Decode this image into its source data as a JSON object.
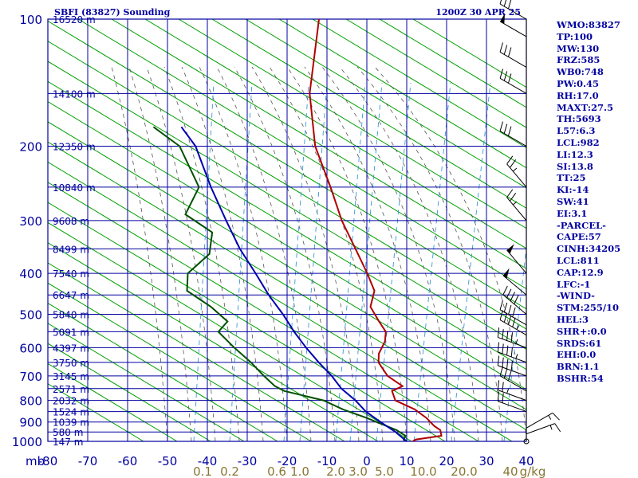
{
  "header": {
    "station": "SBFI (83827) Sounding",
    "time": "1200Z 30 APR 25"
  },
  "indices": [
    "WMO:83827",
    "TP:100",
    "MW:130",
    "FRZ:585",
    "WB0:748",
    "PW:0.45",
    "RH:17.0",
    "MAXT:27.5",
    "TH:5693",
    "L57:6.3",
    "LCL:982",
    "LI:12.3",
    "SI:13.8",
    "TT:25",
    "KI:-14",
    "SW:41",
    "EI:3.1",
    "-PARCEL-",
    "CAPE:57",
    "CINH:34205",
    "LCL:811",
    "CAP:12.9",
    "LFC:-1",
    "-WIND-",
    "STM:255/10",
    "HEL:3",
    "SHR+:0.0",
    "SRDS:61",
    "EHI:0.0",
    "BRN:1.1",
    "BSHR:54"
  ],
  "colors": {
    "grid": "#0000a0",
    "dry_adiabat": "#00a000",
    "moist_adiabat": "#555555",
    "mixing_ratio": "#3399dd",
    "temperature": "#b00000",
    "dewpoint": "#005000",
    "parcel": "#0000b0",
    "label": "#0000a0",
    "mixing_label": "#887733"
  },
  "chart_data": {
    "type": "line",
    "diagram": "skew-T log-P",
    "xlabel": "mb",
    "x_ticks": [
      "-80",
      "-70",
      "-60",
      "-50",
      "-40",
      "-30",
      "-20",
      "-10",
      "0",
      "10",
      "20",
      "30",
      "40"
    ],
    "y_ticks": [
      "100",
      "200",
      "300",
      "400",
      "500",
      "600",
      "700",
      "800",
      "900",
      "1000"
    ],
    "heights": [
      {
        "p": 100,
        "label": "16520 m"
      },
      {
        "p": 150,
        "label": "14100 m"
      },
      {
        "p": 200,
        "label": "12350 m"
      },
      {
        "p": 250,
        "label": "10840 m"
      },
      {
        "p": 300,
        "label": "9608 m"
      },
      {
        "p": 350,
        "label": "8499 m"
      },
      {
        "p": 400,
        "label": "7540 m"
      },
      {
        "p": 450,
        "label": "6647 m"
      },
      {
        "p": 500,
        "label": "5840 m"
      },
      {
        "p": 550,
        "label": "5091 m"
      },
      {
        "p": 600,
        "label": "4397 m"
      },
      {
        "p": 650,
        "label": "3750 m"
      },
      {
        "p": 700,
        "label": "3145 m"
      },
      {
        "p": 750,
        "label": "2571 m"
      },
      {
        "p": 800,
        "label": "2032 m"
      },
      {
        "p": 850,
        "label": "1524 m"
      },
      {
        "p": 900,
        "label": "1039 m"
      },
      {
        "p": 950,
        "label": "580 m"
      },
      {
        "p": 1000,
        "label": "147 m"
      }
    ],
    "mixing_ratio_labels": [
      "0.1",
      "0.2",
      "0.6",
      "1.0",
      "2.0",
      "3.0",
      "5.0",
      "10.0",
      "20.0",
      "40",
      "g/kg"
    ],
    "series": [
      {
        "name": "temperature",
        "points": [
          [
            1010,
            11
          ],
          [
            990,
            12
          ],
          [
            970,
            18
          ],
          [
            940,
            17
          ],
          [
            920,
            15
          ],
          [
            880,
            12
          ],
          [
            840,
            8
          ],
          [
            800,
            2
          ],
          [
            760,
            0
          ],
          [
            740,
            2
          ],
          [
            700,
            -3
          ],
          [
            650,
            -7
          ],
          [
            620,
            -8
          ],
          [
            580,
            -8
          ],
          [
            550,
            -9
          ],
          [
            520,
            -12
          ],
          [
            480,
            -16
          ],
          [
            440,
            -17
          ],
          [
            400,
            -21
          ],
          [
            350,
            -27
          ],
          [
            300,
            -34
          ],
          [
            250,
            -41
          ],
          [
            200,
            -50
          ],
          [
            150,
            -58
          ],
          [
            100,
            -65
          ]
        ]
      },
      {
        "name": "dewpoint",
        "points": [
          [
            1010,
            10
          ],
          [
            990,
            9
          ],
          [
            970,
            9
          ],
          [
            940,
            6
          ],
          [
            900,
            0
          ],
          [
            880,
            -3
          ],
          [
            840,
            -10
          ],
          [
            800,
            -16
          ],
          [
            760,
            -27
          ],
          [
            740,
            -30
          ],
          [
            700,
            -34
          ],
          [
            650,
            -39
          ],
          [
            600,
            -45
          ],
          [
            550,
            -51
          ],
          [
            520,
            -50
          ],
          [
            480,
            -56
          ],
          [
            440,
            -64
          ],
          [
            400,
            -66
          ],
          [
            360,
            -63
          ],
          [
            320,
            -65
          ],
          [
            290,
            -74
          ],
          [
            250,
            -74
          ],
          [
            200,
            -84
          ],
          [
            180,
            -93
          ]
        ]
      },
      {
        "name": "parcel",
        "points": [
          [
            1020,
            14
          ],
          [
            1000,
            10
          ],
          [
            950,
            6
          ],
          [
            900,
            1
          ],
          [
            850,
            -4
          ],
          [
            800,
            -8
          ],
          [
            750,
            -13
          ],
          [
            700,
            -17
          ],
          [
            650,
            -22
          ],
          [
            600,
            -27
          ],
          [
            550,
            -32
          ],
          [
            500,
            -37
          ],
          [
            450,
            -43
          ],
          [
            400,
            -49
          ],
          [
            350,
            -56
          ],
          [
            300,
            -63
          ],
          [
            250,
            -71
          ],
          [
            200,
            -80
          ],
          [
            180,
            -86
          ]
        ]
      }
    ],
    "winds": [
      {
        "p": 1000,
        "dir": 90,
        "spd": 0
      },
      {
        "p": 960,
        "dir": 70,
        "spd": 15
      },
      {
        "p": 930,
        "dir": 60,
        "spd": 15
      },
      {
        "p": 850,
        "dir": 290,
        "spd": 20
      },
      {
        "p": 800,
        "dir": 290,
        "spd": 25
      },
      {
        "p": 760,
        "dir": 300,
        "spd": 30
      },
      {
        "p": 700,
        "dir": 290,
        "spd": 40
      },
      {
        "p": 650,
        "dir": 290,
        "spd": 45
      },
      {
        "p": 600,
        "dir": 290,
        "spd": 45
      },
      {
        "p": 560,
        "dir": 300,
        "spd": 45
      },
      {
        "p": 530,
        "dir": 300,
        "spd": 40
      },
      {
        "p": 500,
        "dir": 310,
        "spd": 40
      },
      {
        "p": 450,
        "dir": 310,
        "spd": 50
      },
      {
        "p": 400,
        "dir": 320,
        "spd": 50
      },
      {
        "p": 300,
        "dir": 320,
        "spd": 25
      },
      {
        "p": 250,
        "dir": 320,
        "spd": 25
      },
      {
        "p": 200,
        "dir": 300,
        "spd": 30
      },
      {
        "p": 150,
        "dir": 300,
        "spd": 30
      },
      {
        "p": 130,
        "dir": 300,
        "spd": 30
      },
      {
        "p": 110,
        "dir": 300,
        "spd": 50
      },
      {
        "p": 100,
        "dir": 300,
        "spd": 30
      }
    ]
  }
}
